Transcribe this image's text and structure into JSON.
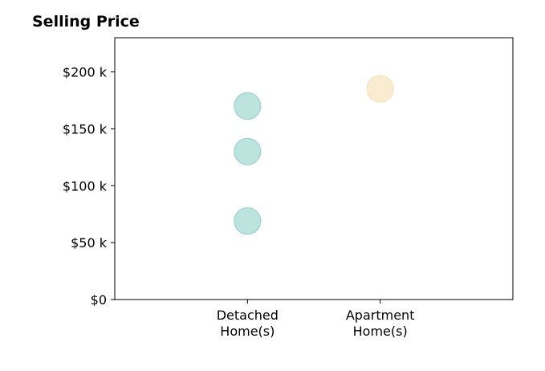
{
  "chart_data": {
    "type": "scatter",
    "title": "Selling Price",
    "xlabel": "",
    "ylabel": "",
    "categories": [
      {
        "lines": [
          "Detached",
          "Home(s)"
        ]
      },
      {
        "lines": [
          "Apartment",
          "Home(s)"
        ]
      }
    ],
    "xlim": [
      -1,
      2
    ],
    "ylim": [
      0,
      230000
    ],
    "y_ticks": [
      {
        "value": 0,
        "label": "$0"
      },
      {
        "value": 50000,
        "label": "$50 k"
      },
      {
        "value": 100000,
        "label": "$100 k"
      },
      {
        "value": 150000,
        "label": "$150 k"
      },
      {
        "value": 200000,
        "label": "$200 k"
      }
    ],
    "grid": false,
    "legend": "none",
    "points": [
      {
        "category_index": 0,
        "y": 170000,
        "color": "#8fd0c8"
      },
      {
        "category_index": 0,
        "y": 130000,
        "color": "#8fd0c8"
      },
      {
        "category_index": 0,
        "y": 69000,
        "color": "#8fd0c8"
      },
      {
        "category_index": 1,
        "y": 185000,
        "color": "#f5dfb1"
      }
    ]
  }
}
